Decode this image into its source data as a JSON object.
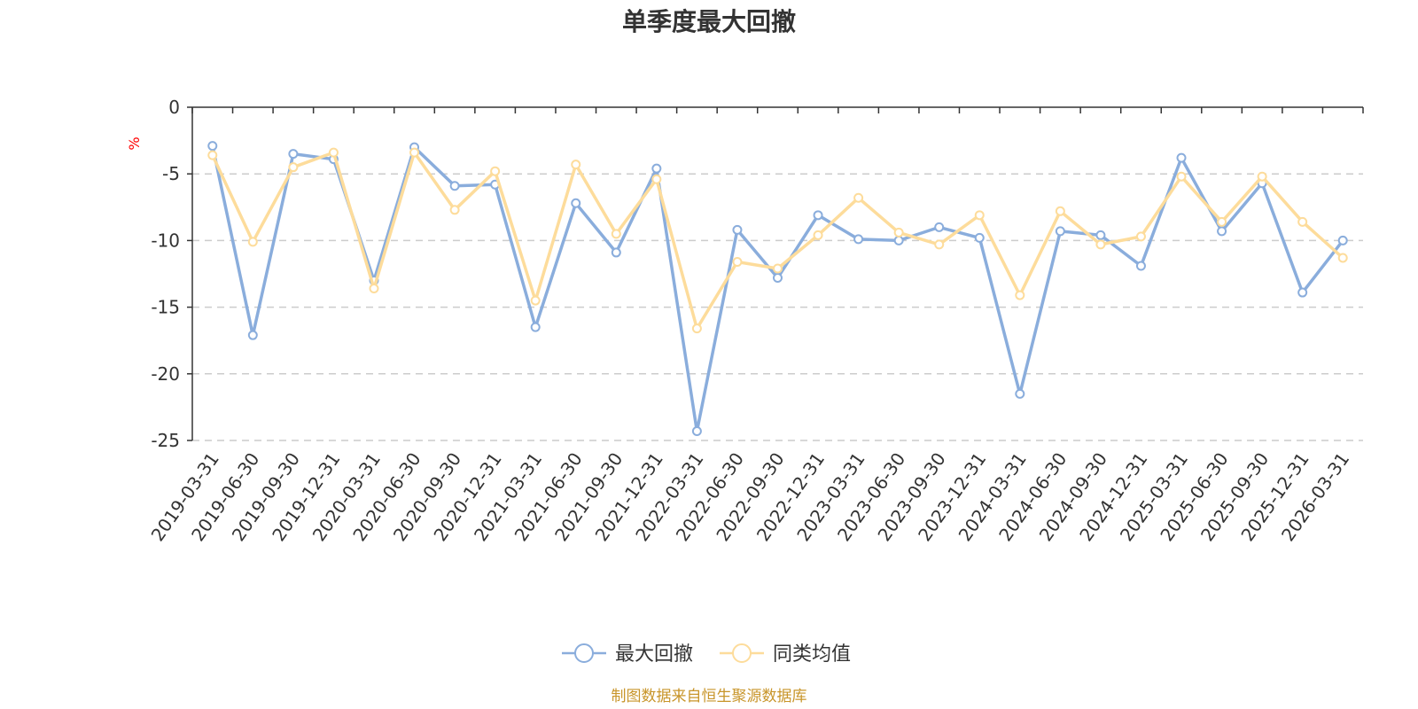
{
  "chart_data": {
    "type": "line",
    "title": "单季度最大回撤",
    "unit": "%",
    "ylim": [
      -25,
      0
    ],
    "yticks": [
      0,
      -5,
      -10,
      -15,
      -20,
      -25
    ],
    "grid": "horizontal-dashed",
    "legend_position": "bottom-center",
    "categories": [
      "2019-03-31",
      "2019-06-30",
      "2019-09-30",
      "2019-12-31",
      "2020-03-31",
      "2020-06-30",
      "2020-09-30",
      "2020-12-31",
      "2021-03-31",
      "2021-06-30",
      "2021-09-30",
      "2021-12-31",
      "2022-03-31",
      "2022-06-30",
      "2022-09-30",
      "2022-12-31",
      "2023-03-31",
      "2023-06-30",
      "2023-09-30",
      "2023-12-31",
      "2024-03-31",
      "2024-06-30",
      "2024-09-30",
      "2024-12-31",
      "2025-03-31",
      "2025-06-30",
      "2025-09-30",
      "2025-12-31",
      "2026-03-31"
    ],
    "series": [
      {
        "name": "最大回撤",
        "color": "#8aaddc",
        "values": [
          -2.9,
          -17.1,
          -3.5,
          -3.9,
          -13.0,
          -3.0,
          -5.9,
          -5.8,
          -16.5,
          -7.2,
          -10.9,
          -4.6,
          -24.3,
          -9.2,
          -12.8,
          -8.1,
          -9.9,
          -10.0,
          -9.0,
          -9.8,
          -21.5,
          -9.3,
          -9.6,
          -11.9,
          -3.8,
          -9.3,
          -5.7,
          -13.9,
          -10.0
        ]
      },
      {
        "name": "同类均值",
        "color": "#fddc9b",
        "values": [
          -3.6,
          -10.1,
          -4.5,
          -3.4,
          -13.6,
          -3.4,
          -7.7,
          -4.8,
          -14.5,
          -4.3,
          -9.5,
          -5.4,
          -16.6,
          -11.6,
          -12.1,
          -9.6,
          -6.8,
          -9.4,
          -10.3,
          -8.1,
          -14.1,
          -7.8,
          -10.3,
          -9.7,
          -5.2,
          -8.6,
          -5.2,
          -8.6,
          -11.3
        ]
      }
    ],
    "source": "制图数据来自恒生聚源数据库",
    "source_color": "#c8952a"
  }
}
